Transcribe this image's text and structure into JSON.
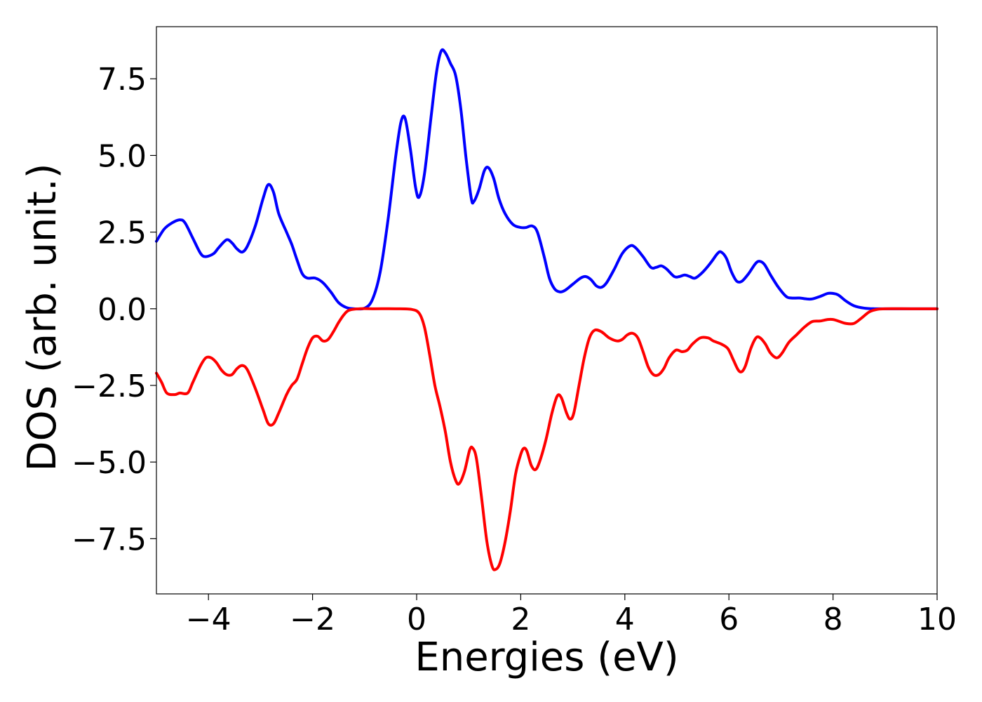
{
  "chart_data": {
    "type": "line",
    "title": "",
    "xlabel": "Energies (eV)",
    "ylabel": "DOS (arb. unit.)",
    "xlim": [
      -5,
      10
    ],
    "ylim": [
      -9.3,
      9.2
    ],
    "x_ticks": [
      {
        "value": -4,
        "label": "−4"
      },
      {
        "value": -2,
        "label": "−2"
      },
      {
        "value": 0,
        "label": "0"
      },
      {
        "value": 2,
        "label": "2"
      },
      {
        "value": 4,
        "label": "4"
      },
      {
        "value": 6,
        "label": "6"
      },
      {
        "value": 8,
        "label": "8"
      },
      {
        "value": 10,
        "label": "10"
      }
    ],
    "y_ticks": [
      {
        "value": 7.5,
        "label": "7.5"
      },
      {
        "value": 5.0,
        "label": "5.0"
      },
      {
        "value": 2.5,
        "label": "2.5"
      },
      {
        "value": 0.0,
        "label": "0.0"
      },
      {
        "value": -2.5,
        "label": "−2.5"
      },
      {
        "value": -5.0,
        "label": "−5.0"
      },
      {
        "value": -7.5,
        "label": "−7.5"
      }
    ],
    "grid": false,
    "legend": "none",
    "series": [
      {
        "color": "#0000ff",
        "points": [
          [
            -5.0,
            2.2
          ],
          [
            -4.85,
            2.6
          ],
          [
            -4.7,
            2.8
          ],
          [
            -4.55,
            2.9
          ],
          [
            -4.45,
            2.8
          ],
          [
            -4.3,
            2.3
          ],
          [
            -4.15,
            1.8
          ],
          [
            -4.05,
            1.7
          ],
          [
            -3.9,
            1.8
          ],
          [
            -3.8,
            2.0
          ],
          [
            -3.65,
            2.25
          ],
          [
            -3.55,
            2.15
          ],
          [
            -3.45,
            1.95
          ],
          [
            -3.35,
            1.85
          ],
          [
            -3.25,
            2.05
          ],
          [
            -3.1,
            2.7
          ],
          [
            -2.95,
            3.6
          ],
          [
            -2.85,
            4.05
          ],
          [
            -2.75,
            3.8
          ],
          [
            -2.65,
            3.1
          ],
          [
            -2.5,
            2.5
          ],
          [
            -2.4,
            2.1
          ],
          [
            -2.3,
            1.6
          ],
          [
            -2.2,
            1.15
          ],
          [
            -2.1,
            1.0
          ],
          [
            -1.95,
            1.0
          ],
          [
            -1.8,
            0.85
          ],
          [
            -1.65,
            0.55
          ],
          [
            -1.5,
            0.2
          ],
          [
            -1.35,
            0.04
          ],
          [
            -1.2,
            0.0
          ],
          [
            -1.0,
            0.02
          ],
          [
            -0.85,
            0.3
          ],
          [
            -0.7,
            1.2
          ],
          [
            -0.55,
            2.9
          ],
          [
            -0.4,
            5.0
          ],
          [
            -0.3,
            6.1
          ],
          [
            -0.22,
            6.2
          ],
          [
            -0.12,
            5.2
          ],
          [
            -0.02,
            3.95
          ],
          [
            0.05,
            3.65
          ],
          [
            0.15,
            4.4
          ],
          [
            0.28,
            6.3
          ],
          [
            0.38,
            7.7
          ],
          [
            0.47,
            8.4
          ],
          [
            0.55,
            8.35
          ],
          [
            0.65,
            8.0
          ],
          [
            0.75,
            7.6
          ],
          [
            0.85,
            6.5
          ],
          [
            0.95,
            4.9
          ],
          [
            1.05,
            3.6
          ],
          [
            1.1,
            3.5
          ],
          [
            1.2,
            3.9
          ],
          [
            1.3,
            4.5
          ],
          [
            1.38,
            4.6
          ],
          [
            1.48,
            4.25
          ],
          [
            1.58,
            3.6
          ],
          [
            1.7,
            3.1
          ],
          [
            1.85,
            2.75
          ],
          [
            2.0,
            2.65
          ],
          [
            2.1,
            2.65
          ],
          [
            2.22,
            2.7
          ],
          [
            2.32,
            2.5
          ],
          [
            2.45,
            1.7
          ],
          [
            2.55,
            1.0
          ],
          [
            2.65,
            0.65
          ],
          [
            2.75,
            0.55
          ],
          [
            2.85,
            0.6
          ],
          [
            3.0,
            0.8
          ],
          [
            3.15,
            1.0
          ],
          [
            3.25,
            1.05
          ],
          [
            3.35,
            0.95
          ],
          [
            3.45,
            0.75
          ],
          [
            3.55,
            0.7
          ],
          [
            3.65,
            0.85
          ],
          [
            3.8,
            1.3
          ],
          [
            3.95,
            1.8
          ],
          [
            4.1,
            2.05
          ],
          [
            4.2,
            2.0
          ],
          [
            4.35,
            1.7
          ],
          [
            4.5,
            1.35
          ],
          [
            4.6,
            1.35
          ],
          [
            4.7,
            1.4
          ],
          [
            4.8,
            1.3
          ],
          [
            4.95,
            1.05
          ],
          [
            5.05,
            1.05
          ],
          [
            5.15,
            1.1
          ],
          [
            5.25,
            1.05
          ],
          [
            5.35,
            1.0
          ],
          [
            5.5,
            1.2
          ],
          [
            5.65,
            1.5
          ],
          [
            5.78,
            1.8
          ],
          [
            5.85,
            1.85
          ],
          [
            5.95,
            1.65
          ],
          [
            6.05,
            1.2
          ],
          [
            6.15,
            0.9
          ],
          [
            6.25,
            0.9
          ],
          [
            6.38,
            1.15
          ],
          [
            6.5,
            1.45
          ],
          [
            6.58,
            1.55
          ],
          [
            6.68,
            1.45
          ],
          [
            6.8,
            1.1
          ],
          [
            6.95,
            0.7
          ],
          [
            7.1,
            0.4
          ],
          [
            7.2,
            0.35
          ],
          [
            7.35,
            0.35
          ],
          [
            7.5,
            0.32
          ],
          [
            7.6,
            0.32
          ],
          [
            7.75,
            0.4
          ],
          [
            7.9,
            0.5
          ],
          [
            8.0,
            0.5
          ],
          [
            8.1,
            0.45
          ],
          [
            8.25,
            0.25
          ],
          [
            8.4,
            0.1
          ],
          [
            8.6,
            0.02
          ],
          [
            8.8,
            0.0
          ],
          [
            9.2,
            0.0
          ],
          [
            10.0,
            0.0
          ]
        ]
      },
      {
        "color": "#ff0000",
        "points": [
          [
            -5.0,
            -2.1
          ],
          [
            -4.9,
            -2.4
          ],
          [
            -4.8,
            -2.75
          ],
          [
            -4.65,
            -2.8
          ],
          [
            -4.55,
            -2.75
          ],
          [
            -4.4,
            -2.75
          ],
          [
            -4.3,
            -2.4
          ],
          [
            -4.15,
            -1.85
          ],
          [
            -4.05,
            -1.6
          ],
          [
            -3.95,
            -1.6
          ],
          [
            -3.85,
            -1.75
          ],
          [
            -3.75,
            -2.0
          ],
          [
            -3.65,
            -2.15
          ],
          [
            -3.55,
            -2.15
          ],
          [
            -3.45,
            -1.95
          ],
          [
            -3.35,
            -1.85
          ],
          [
            -3.25,
            -2.0
          ],
          [
            -3.1,
            -2.6
          ],
          [
            -2.95,
            -3.3
          ],
          [
            -2.85,
            -3.75
          ],
          [
            -2.75,
            -3.75
          ],
          [
            -2.65,
            -3.4
          ],
          [
            -2.5,
            -2.8
          ],
          [
            -2.4,
            -2.5
          ],
          [
            -2.3,
            -2.3
          ],
          [
            -2.2,
            -1.8
          ],
          [
            -2.1,
            -1.3
          ],
          [
            -2.0,
            -0.95
          ],
          [
            -1.9,
            -0.9
          ],
          [
            -1.8,
            -1.05
          ],
          [
            -1.7,
            -1.0
          ],
          [
            -1.6,
            -0.75
          ],
          [
            -1.5,
            -0.45
          ],
          [
            -1.4,
            -0.2
          ],
          [
            -1.3,
            -0.05
          ],
          [
            -1.1,
            0.0
          ],
          [
            -0.8,
            0.0
          ],
          [
            -0.4,
            0.0
          ],
          [
            -0.1,
            -0.02
          ],
          [
            0.05,
            -0.15
          ],
          [
            0.15,
            -0.6
          ],
          [
            0.25,
            -1.5
          ],
          [
            0.35,
            -2.5
          ],
          [
            0.45,
            -3.2
          ],
          [
            0.55,
            -4.0
          ],
          [
            0.65,
            -5.0
          ],
          [
            0.75,
            -5.6
          ],
          [
            0.82,
            -5.7
          ],
          [
            0.92,
            -5.3
          ],
          [
            1.02,
            -4.6
          ],
          [
            1.08,
            -4.55
          ],
          [
            1.15,
            -4.9
          ],
          [
            1.25,
            -6.2
          ],
          [
            1.35,
            -7.6
          ],
          [
            1.45,
            -8.4
          ],
          [
            1.52,
            -8.5
          ],
          [
            1.6,
            -8.3
          ],
          [
            1.7,
            -7.6
          ],
          [
            1.8,
            -6.6
          ],
          [
            1.9,
            -5.4
          ],
          [
            2.0,
            -4.75
          ],
          [
            2.06,
            -4.55
          ],
          [
            2.12,
            -4.65
          ],
          [
            2.2,
            -5.1
          ],
          [
            2.28,
            -5.25
          ],
          [
            2.36,
            -5.0
          ],
          [
            2.48,
            -4.3
          ],
          [
            2.6,
            -3.4
          ],
          [
            2.7,
            -2.85
          ],
          [
            2.78,
            -2.9
          ],
          [
            2.88,
            -3.4
          ],
          [
            2.95,
            -3.6
          ],
          [
            3.02,
            -3.4
          ],
          [
            3.12,
            -2.5
          ],
          [
            3.22,
            -1.6
          ],
          [
            3.32,
            -0.95
          ],
          [
            3.42,
            -0.7
          ],
          [
            3.55,
            -0.75
          ],
          [
            3.7,
            -0.95
          ],
          [
            3.85,
            -1.05
          ],
          [
            3.95,
            -1.0
          ],
          [
            4.05,
            -0.85
          ],
          [
            4.15,
            -0.8
          ],
          [
            4.25,
            -0.95
          ],
          [
            4.35,
            -1.4
          ],
          [
            4.45,
            -1.9
          ],
          [
            4.55,
            -2.15
          ],
          [
            4.65,
            -2.15
          ],
          [
            4.75,
            -1.95
          ],
          [
            4.85,
            -1.6
          ],
          [
            4.98,
            -1.35
          ],
          [
            5.1,
            -1.4
          ],
          [
            5.2,
            -1.35
          ],
          [
            5.3,
            -1.15
          ],
          [
            5.45,
            -0.95
          ],
          [
            5.6,
            -0.95
          ],
          [
            5.7,
            -1.05
          ],
          [
            5.85,
            -1.15
          ],
          [
            5.98,
            -1.3
          ],
          [
            6.08,
            -1.65
          ],
          [
            6.18,
            -2.0
          ],
          [
            6.25,
            -2.05
          ],
          [
            6.32,
            -1.85
          ],
          [
            6.42,
            -1.3
          ],
          [
            6.52,
            -0.95
          ],
          [
            6.6,
            -0.95
          ],
          [
            6.7,
            -1.15
          ],
          [
            6.8,
            -1.45
          ],
          [
            6.92,
            -1.6
          ],
          [
            7.02,
            -1.45
          ],
          [
            7.15,
            -1.1
          ],
          [
            7.3,
            -0.85
          ],
          [
            7.45,
            -0.6
          ],
          [
            7.6,
            -0.42
          ],
          [
            7.75,
            -0.4
          ],
          [
            7.9,
            -0.35
          ],
          [
            8.0,
            -0.35
          ],
          [
            8.1,
            -0.4
          ],
          [
            8.25,
            -0.48
          ],
          [
            8.4,
            -0.48
          ],
          [
            8.55,
            -0.3
          ],
          [
            8.7,
            -0.1
          ],
          [
            8.85,
            -0.02
          ],
          [
            9.0,
            0.0
          ],
          [
            9.5,
            0.0
          ],
          [
            10.0,
            0.0
          ]
        ]
      }
    ]
  }
}
